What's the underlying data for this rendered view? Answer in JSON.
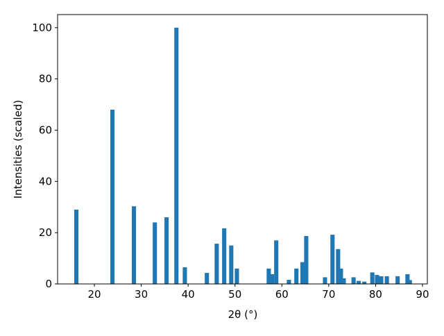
{
  "chart_data": {
    "type": "bar",
    "x_label": "2θ (°)",
    "y_label": "Intensities (scaled)",
    "color": "#1f77b4",
    "x": [
      16.15,
      23.85,
      28.44,
      32.9,
      35.4,
      37.5,
      39.3,
      44.0,
      46.1,
      47.7,
      49.2,
      50.4,
      57.2,
      57.9,
      58.8,
      61.5,
      63.1,
      64.4,
      65.2,
      69.2,
      70.8,
      72.0,
      72.6,
      73.2,
      75.3,
      76.4,
      77.6,
      79.3,
      80.3,
      81.2,
      82.4,
      84.7,
      86.8,
      87.3
    ],
    "values": [
      29,
      68,
      30.3,
      24,
      26,
      100,
      6.5,
      4.3,
      15.7,
      21.7,
      15,
      6,
      6,
      3.8,
      17,
      1.6,
      6,
      8.5,
      18.7,
      2.6,
      19.2,
      13.6,
      6,
      2.2,
      2.6,
      1.2,
      0.9,
      4.5,
      3.5,
      3,
      3,
      3,
      3.8,
      1.5
    ],
    "xlim": [
      12.15,
      91.04
    ],
    "ylim": [
      0,
      105.1
    ],
    "xticks": [
      20,
      30,
      40,
      50,
      60,
      70,
      80,
      90
    ],
    "yticks": [
      0,
      20,
      40,
      60,
      80,
      100
    ],
    "grid": false
  }
}
